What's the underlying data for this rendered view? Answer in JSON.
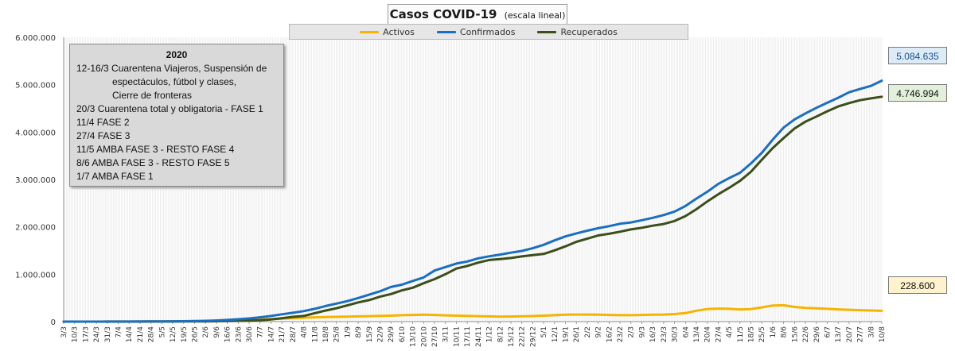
{
  "title": {
    "main": "Casos COVID-19",
    "sub": "(escala lineal)"
  },
  "legend": [
    {
      "label": "Activos",
      "color": "#f5b400"
    },
    {
      "label": "Confirmados",
      "color": "#1a6fc2"
    },
    {
      "label": "Recuperados",
      "color": "#3a4f1a"
    }
  ],
  "notes": {
    "title": "2020",
    "lines": [
      "12-16/3  Cuarentena Viajeros, Suspensión de",
      "espectáculos, fútbol y clases,",
      "Cierre de fronteras",
      "20/3 Cuarentena total y obligatoria - FASE 1",
      "11/4 FASE 2",
      "27/4 FASE 3",
      "11/5 AMBA FASE 3 - RESTO FASE 4",
      "8/6 AMBA FASE 3  - RESTO FASE 5",
      "1/7 AMBA FASE 1"
    ]
  },
  "value_boxes": {
    "confirmados": "5.084.635",
    "recuperados": "4.746.994",
    "activos": "228.600"
  },
  "chart_data": {
    "type": "line",
    "ylim": [
      0,
      6000000
    ],
    "yticks": [
      0,
      1000000,
      2000000,
      3000000,
      4000000,
      5000000,
      6000000
    ],
    "ytick_labels": [
      "0",
      "1.000.000",
      "2.000.000",
      "3.000.000",
      "4.000.000",
      "5.000.000",
      "6.000.000"
    ],
    "grid": "vertical",
    "legend_position": "top",
    "categories": [
      "3/3",
      "10/3",
      "17/3",
      "24/3",
      "31/3",
      "7/4",
      "14/4",
      "21/4",
      "28/4",
      "5/5",
      "12/5",
      "19/5",
      "26/5",
      "2/6",
      "9/6",
      "16/6",
      "23/6",
      "30/6",
      "7/7",
      "14/7",
      "21/7",
      "28/7",
      "4/8",
      "11/8",
      "18/8",
      "25/8",
      "1/9",
      "8/9",
      "15/9",
      "22/9",
      "29/9",
      "6/10",
      "13/10",
      "20/10",
      "27/10",
      "3/11",
      "10/11",
      "17/11",
      "24/11",
      "1/12",
      "8/12",
      "15/12",
      "22/12",
      "29/12",
      "5/1",
      "12/1",
      "19/1",
      "26/1",
      "2/2",
      "9/2",
      "16/2",
      "23/2",
      "2/3",
      "9/3",
      "16/3",
      "23/3",
      "30/3",
      "6/4",
      "13/4",
      "20/4",
      "27/4",
      "4/5",
      "11/5",
      "18/5",
      "25/5",
      "1/6",
      "8/6",
      "15/6",
      "22/6",
      "29/6",
      "6/7",
      "13/7",
      "20/7",
      "27/7",
      "3/8",
      "10/8"
    ],
    "series": [
      {
        "name": "Activos",
        "color": "#f5b400",
        "values": [
          0,
          0,
          0,
          0,
          1000,
          1500,
          1500,
          2000,
          3000,
          4000,
          5000,
          7000,
          9000,
          11000,
          15000,
          20000,
          27000,
          35000,
          43000,
          52000,
          62000,
          72000,
          82000,
          90000,
          97000,
          100000,
          105000,
          110000,
          115000,
          120000,
          125000,
          135000,
          140000,
          145000,
          140000,
          132000,
          125000,
          120000,
          115000,
          110000,
          105000,
          108000,
          112000,
          118000,
          125000,
          135000,
          145000,
          150000,
          150000,
          145000,
          140000,
          135000,
          135000,
          140000,
          145000,
          150000,
          160000,
          180000,
          230000,
          265000,
          275000,
          270000,
          255000,
          265000,
          300000,
          340000,
          345000,
          310000,
          290000,
          280000,
          270000,
          258000,
          250000,
          242000,
          235000,
          228600
        ]
      },
      {
        "name": "Confirmados",
        "color": "#1a6fc2",
        "values": [
          1,
          30,
          100,
          500,
          1000,
          1800,
          2400,
          3500,
          4400,
          5800,
          6600,
          8400,
          11000,
          16200,
          22800,
          35500,
          49800,
          67200,
          90700,
          119300,
          153500,
          185400,
          220700,
          269400,
          327800,
          380500,
          431600,
          498100,
          567600,
          640800,
          730500,
          779700,
          857600,
          931600,
          1077000,
          1151100,
          1225300,
          1269200,
          1336200,
          1378200,
          1415300,
          1454600,
          1491300,
          1549200,
          1621200,
          1714800,
          1798900,
          1862000,
          1918900,
          1971500,
          2015200,
          2064600,
          2093600,
          2140800,
          2190500,
          2249200,
          2322200,
          2440200,
          2595600,
          2740400,
          2905200,
          3028800,
          3140800,
          3336500,
          3562100,
          3839800,
          4094900,
          4267400,
          4395000,
          4511300,
          4619600,
          4724900,
          4839800,
          4908400,
          4974500,
          5084635
        ]
      },
      {
        "name": "Recuperados",
        "color": "#3a4f1a",
        "values": [
          0,
          0,
          5,
          25,
          60,
          280,
          470,
          800,
          1300,
          1800,
          2400,
          3100,
          4000,
          5800,
          7800,
          11000,
          16000,
          20000,
          30000,
          47000,
          72000,
          100000,
          119000,
          177000,
          233000,
          281000,
          342000,
          406000,
          454000,
          526000,
          581000,
          659000,
          716000,
          810000,
          897000,
          1000000,
          1120000,
          1175000,
          1245000,
          1301000,
          1320000,
          1342000,
          1376000,
          1404000,
          1428000,
          1503000,
          1589000,
          1684000,
          1749000,
          1818000,
          1853000,
          1897000,
          1945000,
          1981000,
          2025000,
          2059000,
          2123000,
          2228000,
          2372000,
          2536000,
          2687000,
          2822000,
          2969000,
          3161000,
          3415000,
          3662000,
          3874000,
          4075000,
          4220000,
          4328000,
          4440000,
          4540000,
          4613000,
          4673000,
          4711000,
          4746994
        ]
      }
    ]
  }
}
